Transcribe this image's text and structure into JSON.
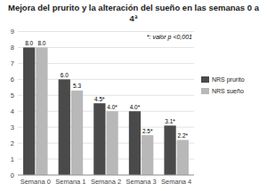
{
  "chart_data": {
    "type": "bar",
    "title": "Mejora del prurito y la alteración del sueño en las semanas 0 a 4ª",
    "categories": [
      "Semana 0",
      "Semana 1",
      "Semana 2",
      "Semana 3",
      "Semana 4"
    ],
    "series": [
      {
        "name": "NRS prurito",
        "color": "#4a4a4a",
        "values": [
          8.0,
          6.0,
          4.5,
          4.0,
          3.1
        ],
        "value_labels": [
          "8.0",
          "6.0",
          "4.5*",
          "4.0*",
          "3.1*"
        ]
      },
      {
        "name": "NRS sueño",
        "color": "#b8b8b8",
        "values": [
          8.0,
          5.3,
          4.0,
          2.5,
          2.2
        ],
        "value_labels": [
          "8.0",
          "5.3",
          "4.0*",
          "2.5*",
          "2.2*"
        ]
      }
    ],
    "ylim": [
      0,
      9
    ],
    "yticks": [
      0,
      1,
      2,
      3,
      4,
      5,
      6,
      7,
      8,
      9
    ],
    "grid": true,
    "legend": "right",
    "data_labels": true,
    "annotation": "*: valor p <0,001"
  }
}
